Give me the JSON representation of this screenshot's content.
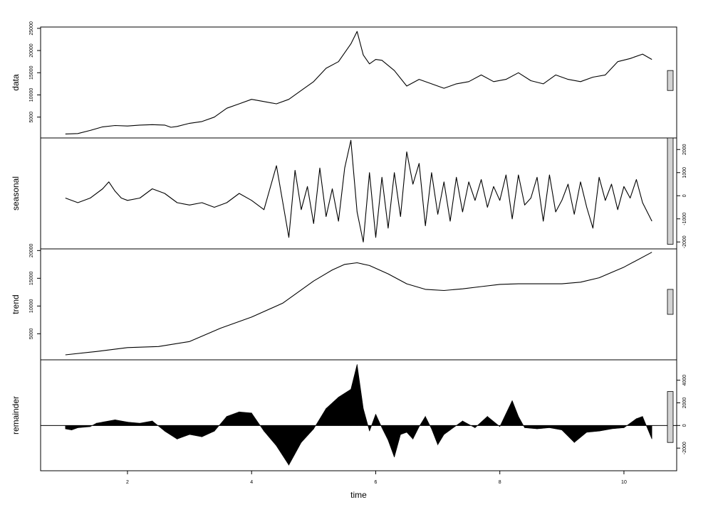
{
  "chart_data": {
    "type": "line",
    "layout": "stacked-panels",
    "xlabel": "time",
    "xlim": [
      0.6,
      10.85
    ],
    "xticks": [
      2,
      4,
      6,
      8,
      10
    ],
    "panels": [
      {
        "name": "data",
        "ylabel": "data",
        "ylim": [
          300,
          25300
        ],
        "yticks": [
          5000,
          10000,
          15000,
          20000,
          25000
        ],
        "tick_side": "left",
        "style": "line",
        "x": [
          1.0,
          1.2,
          1.4,
          1.6,
          1.8,
          2.0,
          2.2,
          2.4,
          2.6,
          2.7,
          2.8,
          3.0,
          3.2,
          3.4,
          3.6,
          3.8,
          4.0,
          4.2,
          4.4,
          4.6,
          4.8,
          5.0,
          5.2,
          5.4,
          5.5,
          5.6,
          5.7,
          5.8,
          5.9,
          6.0,
          6.1,
          6.3,
          6.5,
          6.7,
          6.9,
          7.1,
          7.3,
          7.5,
          7.7,
          7.9,
          8.1,
          8.3,
          8.5,
          8.7,
          8.9,
          9.1,
          9.3,
          9.5,
          9.7,
          9.9,
          10.1,
          10.3,
          10.45
        ],
        "y": [
          1200,
          1300,
          2000,
          2800,
          3100,
          3000,
          3200,
          3300,
          3200,
          2700,
          2900,
          3600,
          4000,
          5000,
          7000,
          8000,
          9000,
          8500,
          8000,
          9000,
          11000,
          13000,
          16000,
          17500,
          19500,
          21500,
          24300,
          19000,
          17000,
          18000,
          17800,
          15500,
          12000,
          13500,
          12500,
          11500,
          12500,
          13000,
          14500,
          13000,
          13500,
          15000,
          13200,
          12500,
          14500,
          13500,
          13000,
          14000,
          14500,
          17500,
          18200,
          19200,
          18000
        ],
        "bar_data_range": [
          11000,
          15500
        ]
      },
      {
        "name": "seasonal",
        "ylabel": "seasonal",
        "ylim": [
          -2300,
          2500
        ],
        "yticks": [
          -2000,
          -1000,
          0,
          1000,
          2000
        ],
        "tick_side": "right",
        "style": "line",
        "x": [
          1.0,
          1.2,
          1.4,
          1.6,
          1.7,
          1.8,
          1.9,
          2.0,
          2.2,
          2.4,
          2.6,
          2.8,
          3.0,
          3.2,
          3.4,
          3.6,
          3.8,
          4.0,
          4.2,
          4.4,
          4.6,
          4.7,
          4.8,
          4.9,
          5.0,
          5.1,
          5.2,
          5.3,
          5.4,
          5.5,
          5.6,
          5.7,
          5.8,
          5.9,
          6.0,
          6.1,
          6.2,
          6.3,
          6.4,
          6.5,
          6.6,
          6.7,
          6.8,
          6.9,
          7.0,
          7.1,
          7.2,
          7.3,
          7.4,
          7.5,
          7.6,
          7.7,
          7.8,
          7.9,
          8.0,
          8.1,
          8.2,
          8.3,
          8.4,
          8.5,
          8.6,
          8.7,
          8.8,
          8.9,
          9.0,
          9.1,
          9.2,
          9.3,
          9.4,
          9.5,
          9.6,
          9.7,
          9.8,
          9.9,
          10.0,
          10.1,
          10.2,
          10.3,
          10.45
        ],
        "y": [
          -100,
          -300,
          -100,
          300,
          600,
          200,
          -100,
          -200,
          -100,
          300,
          100,
          -300,
          -400,
          -300,
          -500,
          -300,
          100,
          -200,
          -600,
          1300,
          -1800,
          1100,
          -600,
          400,
          -1200,
          1200,
          -900,
          300,
          -1100,
          1200,
          2400,
          -700,
          -2000,
          1000,
          -1800,
          800,
          -1400,
          1000,
          -900,
          1900,
          500,
          1400,
          -1300,
          1000,
          -800,
          600,
          -1100,
          800,
          -700,
          600,
          -200,
          700,
          -500,
          400,
          -200,
          900,
          -1000,
          900,
          -400,
          -100,
          800,
          -1100,
          900,
          -700,
          -200,
          500,
          -800,
          600,
          -500,
          -1400,
          800,
          -200,
          500,
          -600,
          400,
          -100,
          700,
          -300,
          -1100
        ],
        "bar_data_range": [
          -2100,
          2500
        ]
      },
      {
        "name": "trend",
        "ylabel": "trend",
        "ylim": [
          300,
          20300
        ],
        "yticks": [
          5000,
          10000,
          15000,
          20000
        ],
        "tick_side": "left",
        "style": "line",
        "x": [
          1.0,
          1.5,
          2.0,
          2.5,
          3.0,
          3.5,
          4.0,
          4.5,
          5.0,
          5.3,
          5.5,
          5.7,
          5.9,
          6.2,
          6.5,
          6.8,
          7.1,
          7.4,
          7.7,
          8.0,
          8.3,
          8.6,
          9.0,
          9.3,
          9.6,
          10.0,
          10.45
        ],
        "y": [
          1200,
          1800,
          2500,
          2700,
          3600,
          6000,
          8000,
          10500,
          14500,
          16500,
          17500,
          17800,
          17300,
          15800,
          14000,
          13000,
          12800,
          13100,
          13500,
          13900,
          14000,
          14000,
          14000,
          14300,
          15100,
          17000,
          19700
        ],
        "bar_data_range": [
          8500,
          13000
        ]
      },
      {
        "name": "remainder",
        "ylabel": "remainder",
        "ylim": [
          -4000,
          5800
        ],
        "yticks": [
          -2000,
          0,
          2000,
          4000
        ],
        "tick_side": "right",
        "style": "histogram",
        "x": [
          1.0,
          1.1,
          1.2,
          1.4,
          1.5,
          1.6,
          1.8,
          2.0,
          2.2,
          2.4,
          2.6,
          2.8,
          3.0,
          3.2,
          3.4,
          3.6,
          3.8,
          4.0,
          4.2,
          4.4,
          4.6,
          4.7,
          4.8,
          5.0,
          5.2,
          5.4,
          5.6,
          5.7,
          5.8,
          5.9,
          6.0,
          6.1,
          6.2,
          6.3,
          6.4,
          6.5,
          6.6,
          6.7,
          6.8,
          6.9,
          7.0,
          7.1,
          7.2,
          7.4,
          7.6,
          7.8,
          8.0,
          8.2,
          8.3,
          8.4,
          8.6,
          8.8,
          9.0,
          9.2,
          9.4,
          9.6,
          9.8,
          10.0,
          10.2,
          10.3,
          10.45
        ],
        "y": [
          -300,
          -400,
          -200,
          -100,
          200,
          300,
          500,
          300,
          200,
          400,
          -500,
          -1200,
          -800,
          -1000,
          -500,
          800,
          1200,
          1100,
          -500,
          -1800,
          -3500,
          -2500,
          -1500,
          -300,
          1500,
          2500,
          3200,
          5400,
          1500,
          -500,
          1000,
          -200,
          -1300,
          -2800,
          -800,
          -600,
          -1200,
          -100,
          800,
          -300,
          -1700,
          -800,
          -400,
          400,
          -200,
          800,
          -100,
          2200,
          800,
          -200,
          -300,
          -200,
          -400,
          -1500,
          -600,
          -500,
          -300,
          -200,
          600,
          800,
          -1200
        ],
        "bar_data_range": [
          -1500,
          3000
        ]
      }
    ]
  }
}
